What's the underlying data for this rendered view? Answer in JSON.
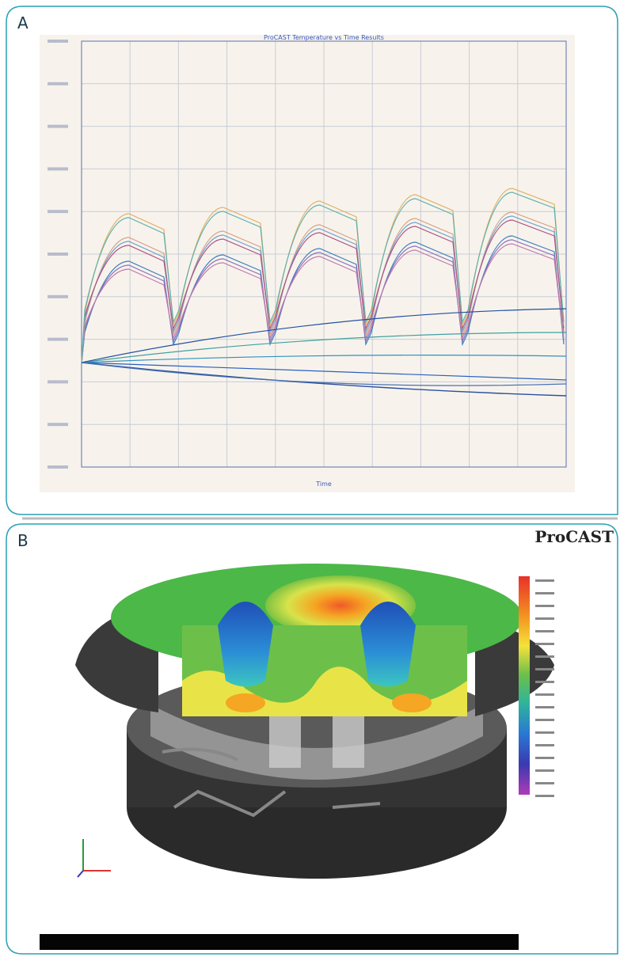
{
  "panels": {
    "a": {
      "label": "A",
      "title": "ProCAST Temperature vs Time Results",
      "x_label": "Time"
    },
    "b": {
      "label": "B",
      "logo": "ProCAST"
    }
  }
}
